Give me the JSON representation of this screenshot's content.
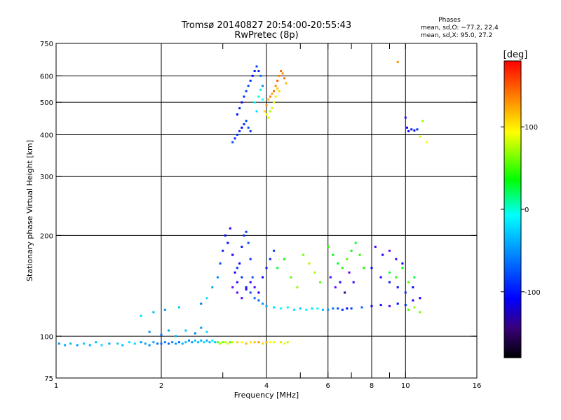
{
  "chart_data": {
    "type": "scatter",
    "title": "Tromsø 20140827 20:54:00-20:55:43",
    "subtitle": "RwPretec (8p)",
    "xlabel": "Frequency [MHz]",
    "ylabel": "Stationary phase Virtual Height [km]",
    "x_scale": "log",
    "y_scale": "log",
    "xlim": [
      1,
      16
    ],
    "ylim": [
      75,
      750
    ],
    "x_ticks": [
      1,
      2,
      4,
      6,
      8,
      10,
      16
    ],
    "x_minor_ticks": [
      3,
      5,
      7,
      9
    ],
    "y_ticks": [
      75,
      100,
      200,
      300,
      400,
      500,
      600,
      750
    ],
    "x_grid": [
      2,
      4,
      6,
      8,
      10
    ],
    "y_grid": [
      100,
      200,
      300,
      400,
      500,
      600
    ],
    "grid": true,
    "legend": {
      "heading": "Phases",
      "line1": "mean, sd,O: −77.2, 22.4",
      "line2": "mean, sd,X:  95.0, 27.2"
    },
    "colorbar": {
      "label": "[deg]",
      "range": [
        -180,
        180
      ],
      "ticks": [
        100,
        0,
        -100
      ],
      "colormap": "rainbow"
    },
    "series": [
      {
        "points": [
          [
            1.02,
            95,
            -60
          ],
          [
            1.06,
            94,
            -55
          ],
          [
            1.1,
            95,
            -50
          ],
          [
            1.15,
            94,
            -58
          ],
          [
            1.2,
            95,
            -45
          ],
          [
            1.25,
            94,
            -52
          ],
          [
            1.3,
            96,
            -48
          ],
          [
            1.35,
            94,
            -40
          ],
          [
            1.42,
            95,
            -55
          ],
          [
            1.5,
            95,
            -45
          ],
          [
            1.55,
            94,
            -50
          ],
          [
            1.62,
            96,
            -38
          ],
          [
            1.68,
            95,
            -42
          ],
          [
            1.75,
            96,
            -60
          ],
          [
            1.8,
            95,
            -55
          ],
          [
            1.85,
            94,
            -62
          ],
          [
            1.9,
            96,
            -58
          ],
          [
            1.95,
            95,
            -70
          ],
          [
            2.0,
            95,
            -75
          ],
          [
            2.05,
            96,
            -68
          ],
          [
            2.1,
            95,
            -72
          ],
          [
            2.15,
            96,
            -65
          ],
          [
            2.2,
            95,
            -60
          ],
          [
            2.25,
            96,
            -70
          ],
          [
            2.3,
            95,
            -55
          ],
          [
            2.35,
            96,
            -50
          ],
          [
            2.4,
            97,
            -62
          ],
          [
            2.45,
            96,
            -58
          ],
          [
            2.5,
            97,
            -45
          ],
          [
            2.55,
            96,
            -48
          ],
          [
            2.6,
            97,
            -52
          ],
          [
            2.65,
            96,
            -40
          ],
          [
            2.7,
            97,
            -55
          ],
          [
            2.75,
            96,
            -50
          ],
          [
            2.8,
            97,
            -35
          ],
          [
            2.85,
            96,
            -45
          ],
          [
            2.9,
            96,
            60
          ],
          [
            2.95,
            95,
            80
          ],
          [
            3.0,
            96,
            70
          ],
          [
            3.05,
            96,
            90
          ],
          [
            3.1,
            95,
            100
          ],
          [
            3.15,
            96,
            60
          ],
          [
            3.2,
            96,
            95
          ],
          [
            3.3,
            96,
            120
          ],
          [
            3.4,
            96,
            110
          ],
          [
            3.5,
            95,
            130
          ],
          [
            3.6,
            96,
            115
          ],
          [
            3.7,
            96,
            125
          ],
          [
            3.8,
            96,
            140
          ],
          [
            3.9,
            95,
            120
          ],
          [
            4.0,
            96,
            130
          ],
          [
            4.1,
            96,
            110
          ],
          [
            4.2,
            96,
            100
          ],
          [
            4.4,
            96,
            120
          ],
          [
            4.5,
            95,
            105
          ],
          [
            4.6,
            96,
            90
          ],
          [
            1.85,
            103,
            -60
          ],
          [
            2.0,
            101,
            -70
          ],
          [
            2.1,
            104,
            -55
          ],
          [
            2.2,
            100,
            -50
          ],
          [
            2.35,
            104,
            -45
          ],
          [
            2.5,
            102,
            -65
          ],
          [
            2.6,
            106,
            -58
          ],
          [
            2.7,
            103,
            -40
          ],
          [
            1.75,
            115,
            -40
          ],
          [
            1.9,
            118,
            -50
          ],
          [
            2.05,
            120,
            -60
          ],
          [
            2.25,
            122,
            -45
          ],
          [
            2.6,
            125,
            -70
          ],
          [
            2.7,
            130,
            -40
          ],
          [
            2.8,
            140,
            -55
          ],
          [
            2.9,
            150,
            -65
          ],
          [
            2.95,
            165,
            -80
          ],
          [
            3.0,
            180,
            -95
          ],
          [
            3.05,
            200,
            -100
          ],
          [
            3.1,
            190,
            -110
          ],
          [
            3.2,
            175,
            -100
          ],
          [
            3.3,
            160,
            -90
          ],
          [
            3.4,
            150,
            -85
          ],
          [
            3.5,
            140,
            -95
          ],
          [
            3.6,
            135,
            -80
          ],
          [
            3.7,
            130,
            -70
          ],
          [
            3.8,
            128,
            -75
          ],
          [
            3.9,
            125,
            -60
          ],
          [
            4.0,
            123,
            -55
          ],
          [
            4.2,
            122,
            -40
          ],
          [
            4.4,
            121,
            -30
          ],
          [
            4.6,
            122,
            -20
          ],
          [
            4.8,
            120,
            -35
          ],
          [
            5.0,
            121,
            -45
          ],
          [
            5.2,
            120,
            -30
          ],
          [
            5.4,
            121,
            -40
          ],
          [
            5.6,
            121,
            -25
          ],
          [
            5.8,
            120,
            -50
          ],
          [
            6.0,
            120,
            -60
          ],
          [
            6.2,
            121,
            -70
          ],
          [
            6.4,
            121,
            -80
          ],
          [
            6.6,
            120,
            -90
          ],
          [
            6.8,
            121,
            -100
          ],
          [
            7.0,
            121,
            -85
          ],
          [
            7.5,
            122,
            -75
          ],
          [
            8.0,
            123,
            -100
          ],
          [
            8.5,
            124,
            -110
          ],
          [
            9.0,
            123,
            -120
          ],
          [
            9.5,
            125,
            -100
          ],
          [
            10.0,
            124,
            -90
          ],
          [
            10.5,
            128,
            -110
          ],
          [
            11.0,
            130,
            -105
          ],
          [
            3.1,
            190,
            -95
          ],
          [
            3.15,
            210,
            -110
          ],
          [
            3.2,
            175,
            -120
          ],
          [
            3.25,
            155,
            -105
          ],
          [
            3.3,
            145,
            -115
          ],
          [
            3.35,
            165,
            -100
          ],
          [
            3.4,
            185,
            -95
          ],
          [
            3.45,
            200,
            -90
          ],
          [
            3.5,
            205,
            -85
          ],
          [
            3.55,
            190,
            -80
          ],
          [
            3.6,
            170,
            -90
          ],
          [
            3.65,
            150,
            -75
          ],
          [
            3.2,
            140,
            -130
          ],
          [
            3.3,
            135,
            -125
          ],
          [
            3.4,
            130,
            -120
          ],
          [
            3.5,
            138,
            -110
          ],
          [
            3.6,
            145,
            -115
          ],
          [
            3.7,
            140,
            -120
          ],
          [
            3.8,
            135,
            -105
          ],
          [
            3.9,
            150,
            -100
          ],
          [
            4.0,
            160,
            -95
          ],
          [
            4.1,
            170,
            -90
          ],
          [
            4.2,
            180,
            -85
          ],
          [
            4.3,
            160,
            20
          ],
          [
            4.5,
            170,
            40
          ],
          [
            4.7,
            150,
            60
          ],
          [
            4.9,
            140,
            80
          ],
          [
            5.1,
            175,
            70
          ],
          [
            5.3,
            165,
            90
          ],
          [
            5.5,
            155,
            85
          ],
          [
            5.7,
            145,
            60
          ],
          [
            6.0,
            185,
            50
          ],
          [
            6.2,
            175,
            40
          ],
          [
            6.4,
            165,
            30
          ],
          [
            6.6,
            160,
            50
          ],
          [
            6.8,
            170,
            60
          ],
          [
            7.0,
            180,
            40
          ],
          [
            7.2,
            190,
            30
          ],
          [
            7.4,
            175,
            50
          ],
          [
            7.6,
            160,
            45
          ],
          [
            6.1,
            150,
            -120
          ],
          [
            6.3,
            140,
            -130
          ],
          [
            6.5,
            145,
            -110
          ],
          [
            6.7,
            135,
            -140
          ],
          [
            6.9,
            155,
            -125
          ],
          [
            7.1,
            145,
            -115
          ],
          [
            8.0,
            160,
            -100
          ],
          [
            8.5,
            150,
            -110
          ],
          [
            9.0,
            145,
            -95
          ],
          [
            9.5,
            140,
            -105
          ],
          [
            10.0,
            135,
            -90
          ],
          [
            10.5,
            140,
            -100
          ],
          [
            8.2,
            185,
            -120
          ],
          [
            8.6,
            175,
            -110
          ],
          [
            9.0,
            180,
            -130
          ],
          [
            9.4,
            170,
            -115
          ],
          [
            9.8,
            165,
            -100
          ],
          [
            9.0,
            155,
            30
          ],
          [
            9.4,
            150,
            50
          ],
          [
            9.8,
            160,
            40
          ],
          [
            10.2,
            145,
            60
          ],
          [
            10.6,
            150,
            20
          ],
          [
            10.2,
            120,
            60
          ],
          [
            10.6,
            122,
            80
          ],
          [
            11.0,
            118,
            70
          ],
          [
            3.2,
            380,
            -80
          ],
          [
            3.25,
            390,
            -90
          ],
          [
            3.3,
            400,
            -85
          ],
          [
            3.35,
            410,
            -95
          ],
          [
            3.4,
            420,
            -100
          ],
          [
            3.45,
            430,
            -90
          ],
          [
            3.5,
            440,
            -85
          ],
          [
            3.55,
            420,
            -80
          ],
          [
            3.6,
            410,
            -90
          ],
          [
            3.3,
            460,
            -100
          ],
          [
            3.35,
            480,
            -95
          ],
          [
            3.4,
            500,
            -105
          ],
          [
            3.45,
            520,
            -90
          ],
          [
            3.5,
            540,
            -85
          ],
          [
            3.55,
            560,
            -80
          ],
          [
            3.6,
            580,
            -90
          ],
          [
            3.65,
            600,
            -100
          ],
          [
            3.7,
            620,
            -95
          ],
          [
            3.75,
            640,
            -85
          ],
          [
            3.8,
            620,
            -90
          ],
          [
            3.85,
            600,
            -70
          ],
          [
            3.9,
            560,
            -60
          ],
          [
            3.7,
            500,
            -30
          ],
          [
            3.75,
            470,
            -40
          ],
          [
            3.8,
            520,
            -20
          ],
          [
            3.85,
            545,
            -35
          ],
          [
            3.9,
            510,
            -30
          ],
          [
            3.95,
            470,
            120
          ],
          [
            4.0,
            490,
            140
          ],
          [
            4.05,
            510,
            130
          ],
          [
            4.1,
            520,
            145
          ],
          [
            4.15,
            530,
            135
          ],
          [
            4.2,
            540,
            150
          ],
          [
            4.25,
            560,
            140
          ],
          [
            4.3,
            580,
            155
          ],
          [
            4.35,
            600,
            145
          ],
          [
            4.4,
            620,
            150
          ],
          [
            4.45,
            610,
            140
          ],
          [
            4.5,
            590,
            145
          ],
          [
            4.55,
            570,
            130
          ],
          [
            4.0,
            460,
            110
          ],
          [
            4.05,
            450,
            100
          ],
          [
            4.1,
            470,
            90
          ],
          [
            4.15,
            480,
            95
          ],
          [
            4.2,
            500,
            105
          ],
          [
            4.25,
            520,
            115
          ],
          [
            4.3,
            550,
            125
          ],
          [
            4.35,
            540,
            120
          ],
          [
            10.0,
            450,
            -120
          ],
          [
            10.1,
            420,
            -110
          ],
          [
            10.2,
            410,
            -100
          ],
          [
            10.4,
            415,
            -95
          ],
          [
            10.6,
            412,
            -100
          ],
          [
            10.8,
            415,
            -90
          ],
          [
            11.2,
            440,
            80
          ],
          [
            11.0,
            395,
            100
          ],
          [
            11.5,
            380,
            110
          ],
          [
            9.5,
            660,
            140
          ]
        ]
      }
    ]
  }
}
